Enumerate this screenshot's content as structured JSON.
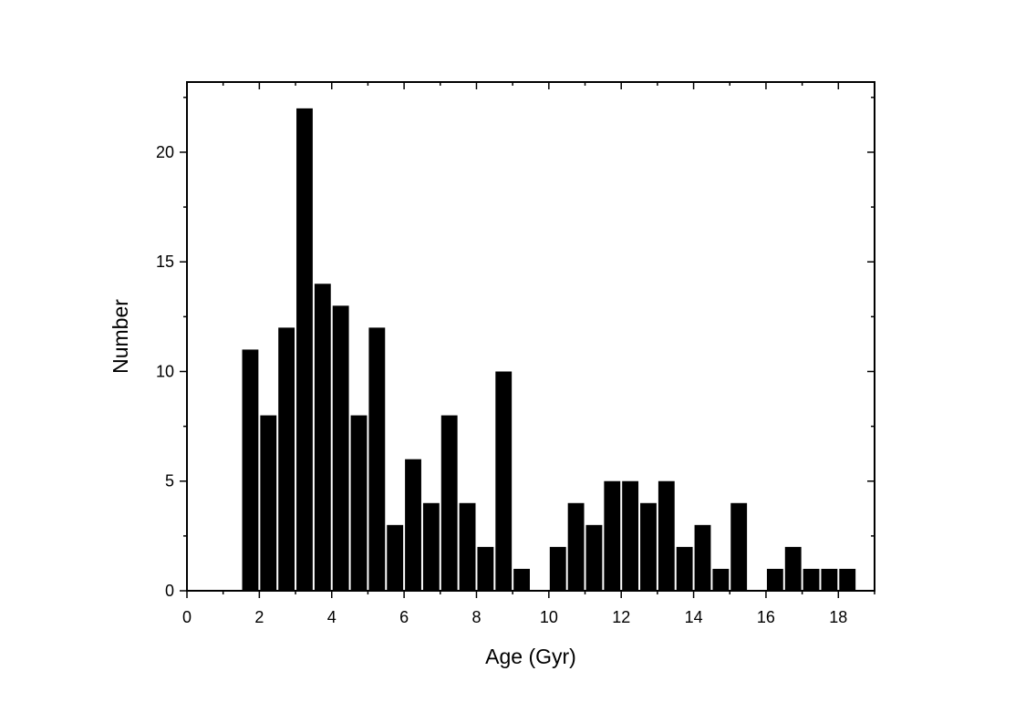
{
  "chart_data": {
    "type": "bar",
    "xlabel": "Age (Gyr)",
    "ylabel": "Number",
    "xlim": [
      0,
      19
    ],
    "ylim": [
      0,
      23.2
    ],
    "bin_width": 0.5,
    "x": [
      1.75,
      2.25,
      2.75,
      3.25,
      3.75,
      4.25,
      4.75,
      5.25,
      5.75,
      6.25,
      6.75,
      7.25,
      7.75,
      8.25,
      8.75,
      9.25,
      9.75,
      10.25,
      10.75,
      11.25,
      11.75,
      12.25,
      12.75,
      13.25,
      13.75,
      14.25,
      14.75,
      15.25,
      15.75,
      16.25,
      16.75,
      17.25,
      17.75,
      18.25
    ],
    "values": [
      11,
      8,
      12,
      22,
      14,
      13,
      8,
      12,
      3,
      6,
      4,
      8,
      4,
      2,
      10,
      1,
      0,
      2,
      4,
      3,
      5,
      5,
      4,
      5,
      2,
      3,
      1,
      4,
      0,
      1,
      2,
      1,
      1,
      1
    ],
    "x_ticks": [
      "0",
      "2",
      "4",
      "6",
      "8",
      "10",
      "12",
      "14",
      "16",
      "18"
    ],
    "y_ticks": [
      "0",
      "5",
      "10",
      "15",
      "20"
    ],
    "bar_color": "#000000",
    "grid": false,
    "legend": false
  }
}
